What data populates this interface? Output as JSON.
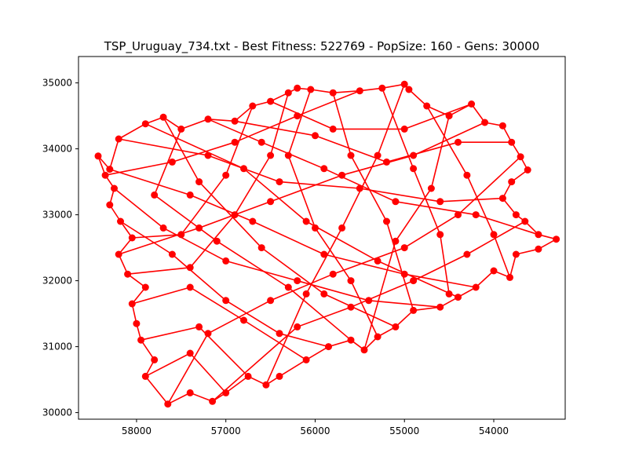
{
  "figure": {
    "title": "TSP_Uruguay_734.txt - Best Fitness: 522769 - PopSize: 160 - Gens: 30000"
  },
  "chart_data": {
    "type": "line",
    "title": "TSP_Uruguay_734.txt - Best Fitness: 522769 - PopSize: 160 - Gens: 30000",
    "xlabel": "",
    "ylabel": "",
    "x_inverted": true,
    "xlim": [
      58650,
      53200
    ],
    "ylim": [
      29900,
      35400
    ],
    "grid": false,
    "x_ticks": [
      {
        "value": 58000,
        "label": "58000"
      },
      {
        "value": 57000,
        "label": "57000"
      },
      {
        "value": 56000,
        "label": "56000"
      },
      {
        "value": 55000,
        "label": "55000"
      },
      {
        "value": 54000,
        "label": "54000"
      }
    ],
    "y_ticks": [
      {
        "value": 30000,
        "label": "30000"
      },
      {
        "value": 31000,
        "label": "31000"
      },
      {
        "value": 32000,
        "label": "32000"
      },
      {
        "value": 33000,
        "label": "33000"
      },
      {
        "value": 34000,
        "label": "34000"
      },
      {
        "value": 35000,
        "label": "35000"
      }
    ],
    "color": "#ff0000",
    "marker": "circle",
    "route": [
      [
        58430,
        33890
      ],
      [
        58300,
        33690
      ],
      [
        58200,
        34150
      ],
      [
        57900,
        34380
      ],
      [
        57700,
        34480
      ],
      [
        57500,
        34300
      ],
      [
        57200,
        34450
      ],
      [
        56900,
        34420
      ],
      [
        56700,
        34650
      ],
      [
        56500,
        34720
      ],
      [
        56300,
        34850
      ],
      [
        56200,
        34920
      ],
      [
        56050,
        34900
      ],
      [
        55800,
        34850
      ],
      [
        55500,
        34880
      ],
      [
        55250,
        34920
      ],
      [
        55000,
        34980
      ],
      [
        54950,
        34900
      ],
      [
        54750,
        34650
      ],
      [
        54500,
        34500
      ],
      [
        54250,
        34680
      ],
      [
        54100,
        34400
      ],
      [
        53900,
        34350
      ],
      [
        53800,
        34100
      ],
      [
        53700,
        33880
      ],
      [
        53620,
        33680
      ],
      [
        53800,
        33500
      ],
      [
        53900,
        33250
      ],
      [
        53750,
        33000
      ],
      [
        53650,
        32900
      ],
      [
        53500,
        32700
      ],
      [
        53300,
        32630
      ],
      [
        53500,
        32480
      ],
      [
        53750,
        32400
      ],
      [
        53820,
        32050
      ],
      [
        54000,
        32150
      ],
      [
        54200,
        31900
      ],
      [
        54400,
        31750
      ],
      [
        54600,
        31600
      ],
      [
        54900,
        31550
      ],
      [
        55100,
        31300
      ],
      [
        55300,
        31150
      ],
      [
        55450,
        30950
      ],
      [
        55600,
        31100
      ],
      [
        55850,
        31000
      ],
      [
        56100,
        30800
      ],
      [
        56400,
        30550
      ],
      [
        56550,
        30420
      ],
      [
        56750,
        30550
      ],
      [
        57000,
        30300
      ],
      [
        57150,
        30170
      ],
      [
        57400,
        30300
      ],
      [
        57650,
        30130
      ],
      [
        57900,
        30550
      ],
      [
        57800,
        30800
      ],
      [
        57950,
        31100
      ],
      [
        58000,
        31350
      ],
      [
        58050,
        31650
      ],
      [
        57900,
        31900
      ],
      [
        58100,
        32100
      ],
      [
        58200,
        32400
      ],
      [
        58050,
        32650
      ],
      [
        58180,
        32900
      ],
      [
        58300,
        33150
      ],
      [
        58250,
        33400
      ],
      [
        58350,
        33600
      ],
      [
        58430,
        33890
      ]
    ],
    "extra_segments": [
      [
        [
          58200,
          34150
        ],
        [
          57200,
          33900
        ]
      ],
      [
        [
          57200,
          33900
        ],
        [
          56400,
          33500
        ]
      ],
      [
        [
          56400,
          33500
        ],
        [
          55500,
          33400
        ]
      ],
      [
        [
          55500,
          33400
        ],
        [
          54600,
          33200
        ]
      ],
      [
        [
          54600,
          33200
        ],
        [
          53900,
          33250
        ]
      ],
      [
        [
          57900,
          34380
        ],
        [
          56800,
          33700
        ]
      ],
      [
        [
          56800,
          33700
        ],
        [
          56100,
          32900
        ]
      ],
      [
        [
          56100,
          32900
        ],
        [
          55300,
          32300
        ]
      ],
      [
        [
          55300,
          32300
        ],
        [
          54400,
          31750
        ]
      ],
      [
        [
          57500,
          34300
        ],
        [
          57800,
          33300
        ]
      ],
      [
        [
          57800,
          33300
        ],
        [
          57100,
          32600
        ]
      ],
      [
        [
          57100,
          32600
        ],
        [
          56300,
          31900
        ]
      ],
      [
        [
          56300,
          31900
        ],
        [
          55600,
          31100
        ]
      ],
      [
        [
          56900,
          34420
        ],
        [
          56000,
          34200
        ]
      ],
      [
        [
          56000,
          34200
        ],
        [
          55200,
          33800
        ]
      ],
      [
        [
          55200,
          33800
        ],
        [
          54400,
          34100
        ]
      ],
      [
        [
          54400,
          34100
        ],
        [
          53800,
          34100
        ]
      ],
      [
        [
          56300,
          34850
        ],
        [
          56500,
          33900
        ]
      ],
      [
        [
          56500,
          33900
        ],
        [
          56900,
          33000
        ]
      ],
      [
        [
          56900,
          33000
        ],
        [
          57400,
          32200
        ]
      ],
      [
        [
          57400,
          32200
        ],
        [
          58100,
          32100
        ]
      ],
      [
        [
          55800,
          34850
        ],
        [
          55600,
          33900
        ]
      ],
      [
        [
          55600,
          33900
        ],
        [
          55200,
          32900
        ]
      ],
      [
        [
          55200,
          32900
        ],
        [
          54900,
          31550
        ]
      ],
      [
        [
          55000,
          34980
        ],
        [
          55300,
          33900
        ]
      ],
      [
        [
          55300,
          33900
        ],
        [
          55700,
          32800
        ]
      ],
      [
        [
          55700,
          32800
        ],
        [
          56100,
          31800
        ]
      ],
      [
        [
          56100,
          31800
        ],
        [
          56550,
          30420
        ]
      ],
      [
        [
          54750,
          34650
        ],
        [
          54300,
          33600
        ]
      ],
      [
        [
          54300,
          33600
        ],
        [
          54000,
          32700
        ]
      ],
      [
        [
          54000,
          32700
        ],
        [
          53820,
          32050
        ]
      ],
      [
        [
          57700,
          34480
        ],
        [
          57300,
          33500
        ]
      ],
      [
        [
          57300,
          33500
        ],
        [
          56600,
          32500
        ]
      ],
      [
        [
          56600,
          32500
        ],
        [
          55900,
          31800
        ]
      ],
      [
        [
          55900,
          31800
        ],
        [
          55100,
          31300
        ]
      ],
      [
        [
          58300,
          33690
        ],
        [
          57400,
          33300
        ]
      ],
      [
        [
          57400,
          33300
        ],
        [
          56700,
          32900
        ]
      ],
      [
        [
          56700,
          32900
        ],
        [
          55900,
          32400
        ]
      ],
      [
        [
          55900,
          32400
        ],
        [
          55000,
          32100
        ]
      ],
      [
        [
          55000,
          32100
        ],
        [
          54200,
          31900
        ]
      ],
      [
        [
          58180,
          32900
        ],
        [
          57600,
          32400
        ]
      ],
      [
        [
          57600,
          32400
        ],
        [
          57000,
          31700
        ]
      ],
      [
        [
          57000,
          31700
        ],
        [
          56400,
          31200
        ]
      ],
      [
        [
          56400,
          31200
        ],
        [
          55850,
          31000
        ]
      ],
      [
        [
          58050,
          31650
        ],
        [
          57400,
          31900
        ]
      ],
      [
        [
          57400,
          31900
        ],
        [
          56800,
          31400
        ]
      ],
      [
        [
          56800,
          31400
        ],
        [
          56100,
          30800
        ]
      ],
      [
        [
          57950,
          31100
        ],
        [
          57300,
          31300
        ]
      ],
      [
        [
          57300,
          31300
        ],
        [
          56750,
          30550
        ]
      ],
      [
        [
          57900,
          30550
        ],
        [
          57400,
          30900
        ]
      ],
      [
        [
          57400,
          30900
        ],
        [
          57000,
          30300
        ]
      ],
      [
        [
          58200,
          32400
        ],
        [
          57300,
          32800
        ]
      ],
      [
        [
          57300,
          32800
        ],
        [
          56500,
          33200
        ]
      ],
      [
        [
          56500,
          33200
        ],
        [
          55700,
          33600
        ]
      ],
      [
        [
          55700,
          33600
        ],
        [
          54900,
          33900
        ]
      ],
      [
        [
          54900,
          33900
        ],
        [
          54100,
          34400
        ]
      ],
      [
        [
          58350,
          33600
        ],
        [
          57600,
          33800
        ]
      ],
      [
        [
          57600,
          33800
        ],
        [
          56900,
          34100
        ]
      ],
      [
        [
          56900,
          34100
        ],
        [
          56200,
          34500
        ]
      ],
      [
        [
          56200,
          34500
        ],
        [
          55500,
          34880
        ]
      ],
      [
        [
          56050,
          34900
        ],
        [
          56300,
          33900
        ]
      ],
      [
        [
          56300,
          33900
        ],
        [
          56000,
          32800
        ]
      ],
      [
        [
          56000,
          32800
        ],
        [
          55600,
          32000
        ]
      ],
      [
        [
          55600,
          32000
        ],
        [
          55300,
          31150
        ]
      ],
      [
        [
          55250,
          34920
        ],
        [
          54900,
          33700
        ]
      ],
      [
        [
          54900,
          33700
        ],
        [
          54600,
          32700
        ]
      ],
      [
        [
          54600,
          32700
        ],
        [
          54500,
          31800
        ]
      ],
      [
        [
          54500,
          34500
        ],
        [
          54700,
          33400
        ]
      ],
      [
        [
          54700,
          33400
        ],
        [
          55100,
          32600
        ]
      ],
      [
        [
          55100,
          32600
        ],
        [
          55450,
          30950
        ]
      ],
      [
        [
          53700,
          33880
        ],
        [
          54400,
          33000
        ]
      ],
      [
        [
          54400,
          33000
        ],
        [
          55000,
          32500
        ]
      ],
      [
        [
          55000,
          32500
        ],
        [
          55800,
          32100
        ]
      ],
      [
        [
          55800,
          32100
        ],
        [
          56500,
          31700
        ]
      ],
      [
        [
          56500,
          31700
        ],
        [
          57200,
          31200
        ]
      ],
      [
        [
          57200,
          31200
        ],
        [
          57650,
          30130
        ]
      ],
      [
        [
          53650,
          32900
        ],
        [
          54300,
          32400
        ]
      ],
      [
        [
          54300,
          32400
        ],
        [
          54900,
          32000
        ]
      ],
      [
        [
          54900,
          32000
        ],
        [
          55600,
          31600
        ]
      ],
      [
        [
          55600,
          31600
        ],
        [
          56200,
          31300
        ]
      ],
      [
        [
          56200,
          31300
        ],
        [
          57150,
          30170
        ]
      ],
      [
        [
          58250,
          33400
        ],
        [
          57700,
          32800
        ]
      ],
      [
        [
          57700,
          32800
        ],
        [
          57000,
          32300
        ]
      ],
      [
        [
          57000,
          32300
        ],
        [
          56200,
          32000
        ]
      ],
      [
        [
          56200,
          32000
        ],
        [
          55400,
          31700
        ]
      ],
      [
        [
          55400,
          31700
        ],
        [
          54600,
          31600
        ]
      ],
      [
        [
          57200,
          34450
        ],
        [
          56600,
          34100
        ]
      ],
      [
        [
          56600,
          34100
        ],
        [
          55900,
          33700
        ]
      ],
      [
        [
          55900,
          33700
        ],
        [
          55100,
          33200
        ]
      ],
      [
        [
          55100,
          33200
        ],
        [
          54200,
          33000
        ]
      ],
      [
        [
          54200,
          33000
        ],
        [
          53500,
          32700
        ]
      ],
      [
        [
          56700,
          34650
        ],
        [
          57000,
          33600
        ]
      ],
      [
        [
          57000,
          33600
        ],
        [
          57500,
          32700
        ]
      ],
      [
        [
          57500,
          32700
        ],
        [
          58050,
          32650
        ]
      ],
      [
        [
          56500,
          34720
        ],
        [
          55800,
          34300
        ]
      ],
      [
        [
          55800,
          34300
        ],
        [
          55000,
          34300
        ]
      ],
      [
        [
          55000,
          34300
        ],
        [
          54250,
          34680
        ]
      ]
    ]
  }
}
